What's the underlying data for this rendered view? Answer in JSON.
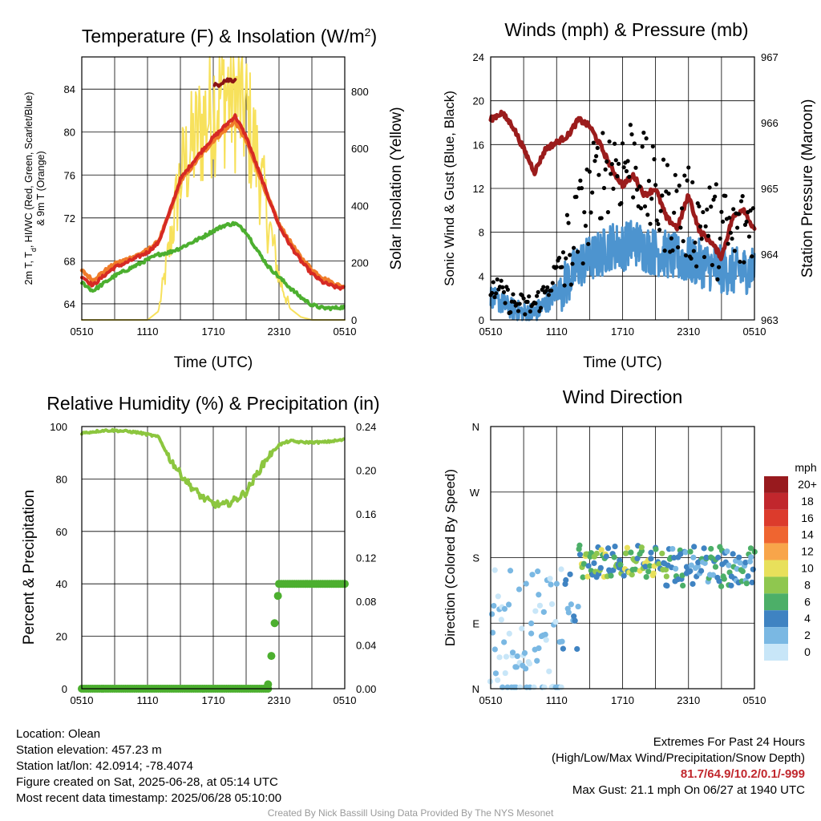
{
  "colors": {
    "red": "#d62a24",
    "orange": "#f07c2a",
    "green": "#4caf2f",
    "dark_red": "#8b1414",
    "yellow": "#f7e15c",
    "blue": "#4d94cf",
    "black": "#000000",
    "maroon": "#9b1c1c",
    "rh_green": "#8cc63f",
    "precip_green": "#4caf2f"
  },
  "chart_data": [
    {
      "type": "line",
      "id": "temperature",
      "title_main": "Temperature (F) & Insolation (W/m",
      "title_sup": "2",
      "title_end": ")",
      "ylabel_line1": "2m T, T",
      "ylabel_sub": "d",
      "ylabel_line1_end": ", HI/WC (Red, Green, Scarlet/Blue)",
      "ylabel_line2": "& 9m T (Orange)",
      "y2label": "Solar Insolation (Yellow)",
      "xlabel": "Time (UTC)",
      "x_ticks": [
        "0510",
        "1110",
        "1710",
        "2310",
        "0510"
      ],
      "ylim": [
        62.5,
        87
      ],
      "y_ticks": [
        64,
        68,
        72,
        76,
        80,
        84
      ],
      "y2lim": [
        0,
        920
      ],
      "y2_ticks": [
        0,
        200,
        400,
        600,
        800
      ],
      "x_hours": [
        0,
        1,
        2,
        3,
        4,
        5,
        6,
        7,
        8,
        9,
        10,
        11,
        12,
        13,
        14,
        15,
        16,
        17,
        18,
        19,
        20,
        21,
        22,
        23,
        24
      ],
      "series": [
        {
          "key": "t2m",
          "axis": "left",
          "values": [
            66.6,
            65.7,
            66.6,
            67.4,
            67.8,
            68.3,
            68.8,
            69.7,
            72.5,
            75.6,
            77.0,
            78.3,
            79.5,
            80.5,
            81.5,
            79.6,
            76.8,
            74.0,
            71.3,
            69.5,
            68.0,
            66.8,
            66.0,
            65.6,
            65.4
          ]
        },
        {
          "key": "t9m",
          "axis": "left",
          "values": [
            67.1,
            66.2,
            67.0,
            67.7,
            68.1,
            68.5,
            69.0,
            69.8,
            72.4,
            75.4,
            76.7,
            78.0,
            79.2,
            80.1,
            81.0,
            79.2,
            76.6,
            73.9,
            71.4,
            69.8,
            68.3,
            67.2,
            66.4,
            65.9,
            65.5
          ]
        },
        {
          "key": "td",
          "axis": "left",
          "values": [
            66.0,
            65.2,
            65.9,
            66.6,
            67.1,
            67.6,
            68.1,
            68.6,
            68.8,
            69.2,
            69.7,
            70.2,
            70.8,
            71.3,
            71.5,
            70.7,
            69.0,
            67.5,
            66.5,
            65.5,
            64.6,
            63.9,
            63.6,
            63.6,
            63.7
          ]
        },
        {
          "key": "hi",
          "axis": "left",
          "values": [
            null,
            null,
            null,
            null,
            null,
            null,
            null,
            null,
            null,
            null,
            null,
            null,
            84.2,
            84.8,
            84.9,
            null,
            null,
            null,
            null,
            null,
            null,
            null,
            null,
            null,
            null
          ]
        },
        {
          "key": "solar",
          "axis": "right",
          "values": [
            0,
            0,
            0,
            0,
            0,
            0,
            0,
            30,
            250,
            500,
            600,
            680,
            760,
            800,
            780,
            720,
            560,
            350,
            150,
            40,
            10,
            0,
            0,
            0,
            0
          ]
        }
      ]
    },
    {
      "type": "line",
      "id": "winds",
      "title": "Winds (mph) & Pressure (mb)",
      "ylabel": "Sonic Wind & Gust (Blue, Black)",
      "y2label": "Station Pressure (Maroon)",
      "xlabel": "Time (UTC)",
      "x_ticks": [
        "0510",
        "1110",
        "1710",
        "2310",
        "0510"
      ],
      "ylim": [
        0,
        24
      ],
      "y_ticks": [
        0,
        4,
        8,
        12,
        16,
        20,
        24
      ],
      "y2lim": [
        963,
        967
      ],
      "y2_ticks": [
        963,
        964,
        965,
        966,
        967
      ],
      "x_hours": [
        0,
        1,
        2,
        3,
        4,
        5,
        6,
        7,
        8,
        9,
        10,
        11,
        12,
        13,
        14,
        15,
        16,
        17,
        18,
        19,
        20,
        21,
        22,
        23,
        24
      ],
      "series": [
        {
          "key": "wind",
          "axis": "left",
          "values": [
            2.2,
            1.5,
            1.0,
            0.6,
            0.6,
            1.5,
            2.6,
            3.5,
            5.0,
            5.5,
            6.0,
            6.8,
            6.6,
            7.2,
            6.5,
            6.2,
            6.0,
            5.6,
            5.4,
            5.2,
            4.8,
            4.6,
            4.4,
            4.5,
            4.7
          ]
        },
        {
          "key": "gust",
          "axis": "left",
          "values": [
            3.0,
            2.4,
            1.5,
            1.2,
            1.4,
            2.5,
            4.5,
            6.0,
            8.5,
            11.0,
            13.5,
            14.5,
            14.0,
            15.0,
            12.5,
            11.0,
            10.5,
            10.0,
            9.5,
            9.0,
            8.5,
            8.0,
            7.5,
            8.0,
            9.5
          ]
        },
        {
          "key": "pressure",
          "axis": "right",
          "values": [
            966.05,
            966.15,
            965.95,
            965.6,
            965.25,
            965.6,
            965.7,
            965.8,
            966.05,
            965.95,
            965.65,
            965.3,
            965.05,
            965.2,
            964.9,
            965.0,
            964.55,
            964.4,
            964.9,
            964.35,
            964.2,
            963.95,
            964.55,
            964.7,
            964.35
          ]
        }
      ]
    },
    {
      "type": "line",
      "id": "humidity",
      "title": "Relative Humidity (%) & Precipitation (in)",
      "ylabel": "Percent & Precipitation",
      "x_ticks": [
        "0510",
        "1110",
        "1710",
        "2310",
        "0510"
      ],
      "ylim": [
        0,
        100
      ],
      "y_ticks": [
        0,
        20,
        40,
        60,
        80,
        100
      ],
      "y2lim": [
        0,
        0.24
      ],
      "y2_ticks": [
        "0.00",
        "0.04",
        "0.08",
        "0.12",
        "0.16",
        "0.20",
        "0.24"
      ],
      "x_hours": [
        0,
        1,
        2,
        3,
        4,
        5,
        6,
        7,
        8,
        9,
        10,
        11,
        12,
        13,
        14,
        15,
        16,
        17,
        18,
        19,
        20,
        21,
        22,
        23,
        24
      ],
      "series": [
        {
          "key": "rh",
          "axis": "left",
          "values": [
            97.5,
            98.0,
            98.5,
            98.5,
            98.2,
            97.8,
            97.0,
            96.0,
            88.0,
            82.0,
            77.0,
            73.0,
            70.5,
            70.0,
            72.0,
            75.0,
            82.0,
            88.5,
            93.0,
            94.5,
            94.0,
            94.0,
            94.0,
            94.5,
            95.0
          ]
        },
        {
          "key": "precip",
          "axis": "right",
          "values": [
            0,
            0,
            0,
            0,
            0,
            0,
            0,
            0,
            0,
            0,
            0,
            0,
            0,
            0,
            0,
            0,
            0,
            0,
            0.096,
            0.096,
            0.096,
            0.096,
            0.096,
            0.096,
            0.096
          ],
          "rise_hours": [
            17.0,
            17.3,
            17.6,
            17.9,
            18.0
          ],
          "rise_values": [
            0.004,
            0.03,
            0.06,
            0.085,
            0.096
          ]
        }
      ]
    },
    {
      "type": "scatter",
      "id": "direction",
      "title": "Wind Direction",
      "ylabel": "Direction (Colored By Speed)",
      "x_ticks": [
        "0510",
        "1110",
        "1710",
        "2310",
        "0510"
      ],
      "y_ticks": [
        "N",
        "E",
        "S",
        "W",
        "N"
      ],
      "ylim": [
        0,
        360
      ],
      "legend_title": "mph",
      "legend_labels": [
        "20+",
        "18",
        "16",
        "14",
        "12",
        "10",
        "8",
        "6",
        "4",
        "2",
        "0"
      ],
      "legend_colors": [
        "#981a1e",
        "#c1272d",
        "#dc3b2c",
        "#ef6530",
        "#f8a54a",
        "#e8e05b",
        "#8fc74f",
        "#4caf68",
        "#3f83c2",
        "#7ab8e3",
        "#c8e6f8"
      ],
      "segments": [
        {
          "from_hour": 0,
          "to_hour": 6.5,
          "dir_center": 60,
          "dir_spread": 110,
          "speed_min": 0,
          "speed_max": 2.5
        },
        {
          "from_hour": 6.5,
          "to_hour": 8,
          "dir_center": 120,
          "dir_spread": 70,
          "speed_min": 1,
          "speed_max": 4
        },
        {
          "from_hour": 8,
          "to_hour": 16,
          "dir_center": 175,
          "dir_spread": 22,
          "speed_min": 3,
          "speed_max": 10
        },
        {
          "from_hour": 16,
          "to_hour": 24,
          "dir_center": 168,
          "dir_spread": 28,
          "speed_min": 2,
          "speed_max": 6
        }
      ]
    }
  ],
  "info": {
    "location": "Location: Olean",
    "elevation": "Station elevation: 457.23 m",
    "latlon": "Station lat/lon: 42.0914; -78.4074",
    "created": "Figure created on Sat, 2025-06-28, at 05:14 UTC",
    "recent": "Most recent data timestamp: 2025/06/28 05:10:00"
  },
  "extremes": {
    "title": "Extremes For Past 24 Hours",
    "subtitle": "(High/Low/Max Wind/Precipitation/Snow Depth)",
    "values": "81.7/64.9/10.2/0.1/-999",
    "gust": "Max Gust: 21.1 mph On 06/27 at 1940 UTC"
  },
  "credit": "Created By Nick Bassill Using Data Provided By The NYS Mesonet"
}
